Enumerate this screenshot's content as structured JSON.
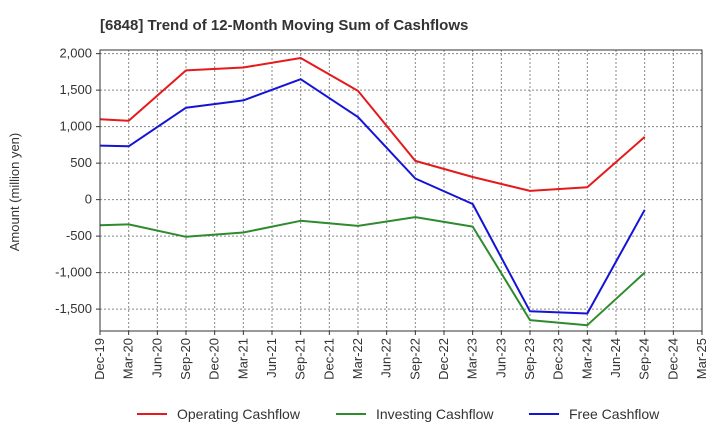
{
  "chart_data": {
    "type": "line",
    "title": "[6848]  Trend of 12-Month Moving Sum of Cashflows",
    "ylabel": "Amount (million yen)",
    "xlabel": "",
    "ylim": [
      -1800,
      2050
    ],
    "yticks": [
      -1500,
      -1000,
      -500,
      0,
      500,
      1000,
      1500,
      2000
    ],
    "ytick_labels": [
      "-1,500",
      "-1,000",
      "-500",
      "0",
      "500",
      "1,000",
      "1,500",
      "2,000"
    ],
    "categories": [
      "Dec-19",
      "Mar-20",
      "Jun-20",
      "Sep-20",
      "Dec-20",
      "Mar-21",
      "Jun-21",
      "Sep-21",
      "Dec-21",
      "Mar-22",
      "Jun-22",
      "Sep-22",
      "Dec-22",
      "Mar-23",
      "Jun-23",
      "Sep-23",
      "Dec-23",
      "Mar-24",
      "Jun-24",
      "Sep-24",
      "Dec-24",
      "Mar-25"
    ],
    "grid": true,
    "legend_position": "bottom",
    "series": [
      {
        "name": "Operating Cashflow",
        "color": "#e41a1c",
        "values": [
          1100,
          1080,
          null,
          1770,
          null,
          1810,
          null,
          1940,
          null,
          1490,
          null,
          530,
          null,
          310,
          null,
          120,
          null,
          170,
          null,
          860,
          null,
          null
        ]
      },
      {
        "name": "Investing Cashflow",
        "color": "#2e8b2e",
        "values": [
          -350,
          -340,
          null,
          -510,
          null,
          -450,
          null,
          -290,
          null,
          -360,
          null,
          -240,
          null,
          -370,
          null,
          -1650,
          null,
          -1720,
          null,
          -1000,
          null,
          null
        ]
      },
      {
        "name": "Free Cashflow",
        "color": "#1414d6",
        "values": [
          740,
          730,
          null,
          1260,
          null,
          1360,
          null,
          1650,
          null,
          1130,
          null,
          290,
          null,
          -60,
          null,
          -1530,
          null,
          -1560,
          null,
          -140,
          null,
          null
        ]
      }
    ]
  }
}
